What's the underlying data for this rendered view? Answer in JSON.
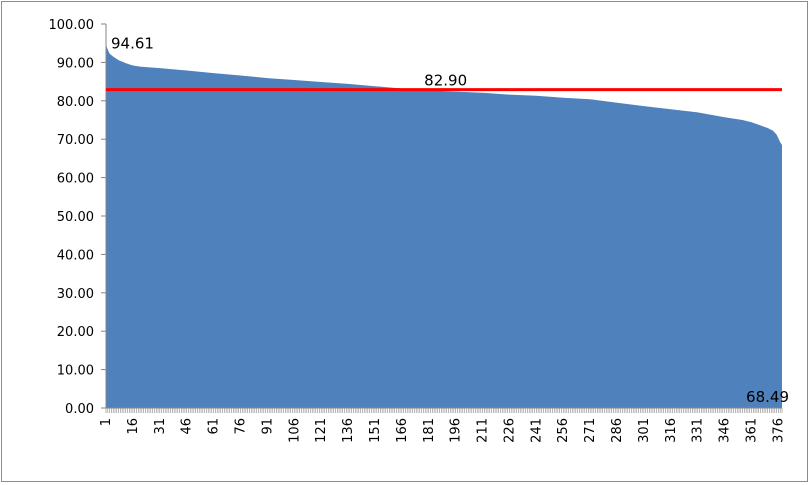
{
  "chart_data": {
    "type": "area",
    "title": "",
    "xlabel": "",
    "ylabel": "",
    "x_start": 1,
    "x_end": 378,
    "x_tick_labels": [
      "1",
      "16",
      "31",
      "46",
      "61",
      "76",
      "91",
      "106",
      "121",
      "136",
      "151",
      "166",
      "181",
      "196",
      "211",
      "226",
      "241",
      "256",
      "271",
      "286",
      "301",
      "316",
      "331",
      "346",
      "361",
      "376"
    ],
    "y_tick_labels": [
      "0.00",
      "10.00",
      "20.00",
      "30.00",
      "40.00",
      "50.00",
      "60.00",
      "70.00",
      "80.00",
      "90.00",
      "100.00"
    ],
    "ylim": [
      0,
      100
    ],
    "grid": false,
    "legend": "none",
    "series": [
      {
        "x": [
          1,
          2,
          3,
          5,
          8,
          12,
          16,
          20,
          31,
          46,
          61,
          76,
          91,
          106,
          121,
          136,
          151,
          166,
          181,
          196,
          211,
          226,
          241,
          256,
          271,
          286,
          301,
          316,
          331,
          346,
          356,
          361,
          366,
          370,
          373,
          375,
          376,
          377,
          378
        ],
        "y": [
          94.61,
          93.3,
          92.3,
          91.5,
          90.6,
          89.8,
          89.2,
          88.9,
          88.5,
          87.9,
          87.2,
          86.6,
          85.9,
          85.4,
          84.9,
          84.4,
          83.8,
          83.2,
          82.7,
          82.4,
          82.1,
          81.6,
          81.3,
          80.8,
          80.4,
          79.5,
          78.6,
          77.8,
          77.0,
          75.7,
          75.0,
          74.4,
          73.6,
          72.9,
          72.2,
          71.2,
          70.2,
          69.2,
          68.49
        ],
        "color": "#4f81bd"
      }
    ],
    "reference_line": {
      "value": 82.9,
      "color": "#ff0000"
    },
    "data_labels": [
      {
        "id": "max",
        "x": 1,
        "y": 94.61,
        "text": "94.61"
      },
      {
        "id": "mean",
        "x": 196,
        "y": 82.9,
        "text": "82.90"
      },
      {
        "id": "min",
        "x": 378,
        "y": 68.49,
        "text": "68.49"
      }
    ]
  }
}
